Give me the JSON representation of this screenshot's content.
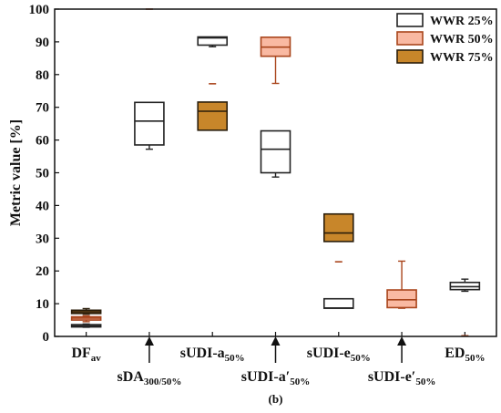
{
  "chart_data": {
    "type": "box",
    "ylabel": "Metric value [%]",
    "ylim": [
      0,
      100
    ],
    "yticks": [
      0,
      10,
      20,
      30,
      40,
      50,
      60,
      70,
      80,
      90,
      100
    ],
    "panel_label": "(b)",
    "legend_position": "top-right",
    "categories": [
      {
        "main": "DF",
        "sub": "av",
        "row": "top",
        "arrow": false
      },
      {
        "main": "sDA",
        "sub": "300/50%",
        "row": "bottom",
        "arrow": true
      },
      {
        "main": "sUDI-a",
        "sub": "50%",
        "row": "top",
        "arrow": false
      },
      {
        "main": "sUDI-a′",
        "sub": "50%",
        "row": "bottom",
        "arrow": true
      },
      {
        "main": "sUDI-e",
        "sub": "50%",
        "row": "top",
        "arrow": false
      },
      {
        "main": "sUDI-e′",
        "sub": "50%",
        "row": "bottom",
        "arrow": true
      },
      {
        "main": "ED",
        "sub": "50%",
        "row": "top",
        "arrow": false
      }
    ],
    "series": [
      {
        "name": "WWR 25%",
        "fill": "#ffffff",
        "stroke": "#222222",
        "boxes": [
          {
            "category": 0,
            "min": 2.8,
            "q1": 2.9,
            "median": 3.2,
            "q3": 3.6,
            "max": 3.8
          },
          {
            "category": 1,
            "min": 57.2,
            "q1": 58.5,
            "median": 65.8,
            "q3": 71.5,
            "max": 71.5
          },
          {
            "category": 2,
            "min": 88.5,
            "q1": 89.0,
            "median": 91.2,
            "q3": 91.5,
            "max": 91.5
          },
          {
            "category": 3,
            "min": 48.7,
            "q1": 50.0,
            "median": 57.2,
            "q3": 62.8,
            "max": 62.8
          },
          {
            "category": 4,
            "min": 8.6,
            "q1": 8.6,
            "median": 8.7,
            "q3": 11.5,
            "max": 11.5
          },
          {
            "category": 6,
            "min": 13.8,
            "q1": 14.3,
            "median": 15.2,
            "q3": 16.5,
            "max": 17.5
          }
        ]
      },
      {
        "name": "WWR 50%",
        "fill": "#f9b9a2",
        "stroke": "#a9451c",
        "boxes": [
          {
            "category": 0,
            "min": 4.5,
            "q1": 5.0,
            "median": 5.6,
            "q3": 6.0,
            "max": 6.3
          },
          {
            "category": 1,
            "min": 100,
            "q1": 100,
            "median": 100,
            "q3": 100,
            "max": 100
          },
          {
            "category": 2,
            "min": 77.2,
            "q1": 77.2,
            "median": 77.2,
            "q3": 77.2,
            "max": 77.2
          },
          {
            "category": 3,
            "min": 77.3,
            "q1": 85.6,
            "median": 88.4,
            "q3": 91.4,
            "max": 91.4
          },
          {
            "category": 4,
            "min": 22.8,
            "q1": 22.8,
            "median": 22.8,
            "q3": 22.8,
            "max": 22.8
          },
          {
            "category": 5,
            "min": 8.6,
            "q1": 8.8,
            "median": 11.2,
            "q3": 14.2,
            "max": 23.0
          },
          {
            "category": 6,
            "min": 0.2,
            "q1": 0.2,
            "median": 0.2,
            "q3": 0.2,
            "max": 0.2
          }
        ]
      },
      {
        "name": "WWR 75%",
        "fill": "#c8862a",
        "stroke": "#2a1d0a",
        "boxes": [
          {
            "category": 0,
            "min": 6.8,
            "q1": 7.0,
            "median": 7.5,
            "q3": 8.0,
            "max": 8.5
          },
          {
            "category": 2,
            "min": 63.0,
            "q1": 63.0,
            "median": 68.8,
            "q3": 71.6,
            "max": 71.6
          },
          {
            "category": 4,
            "min": 29.0,
            "q1": 29.0,
            "median": 31.6,
            "q3": 37.4,
            "max": 37.4
          }
        ]
      }
    ]
  }
}
